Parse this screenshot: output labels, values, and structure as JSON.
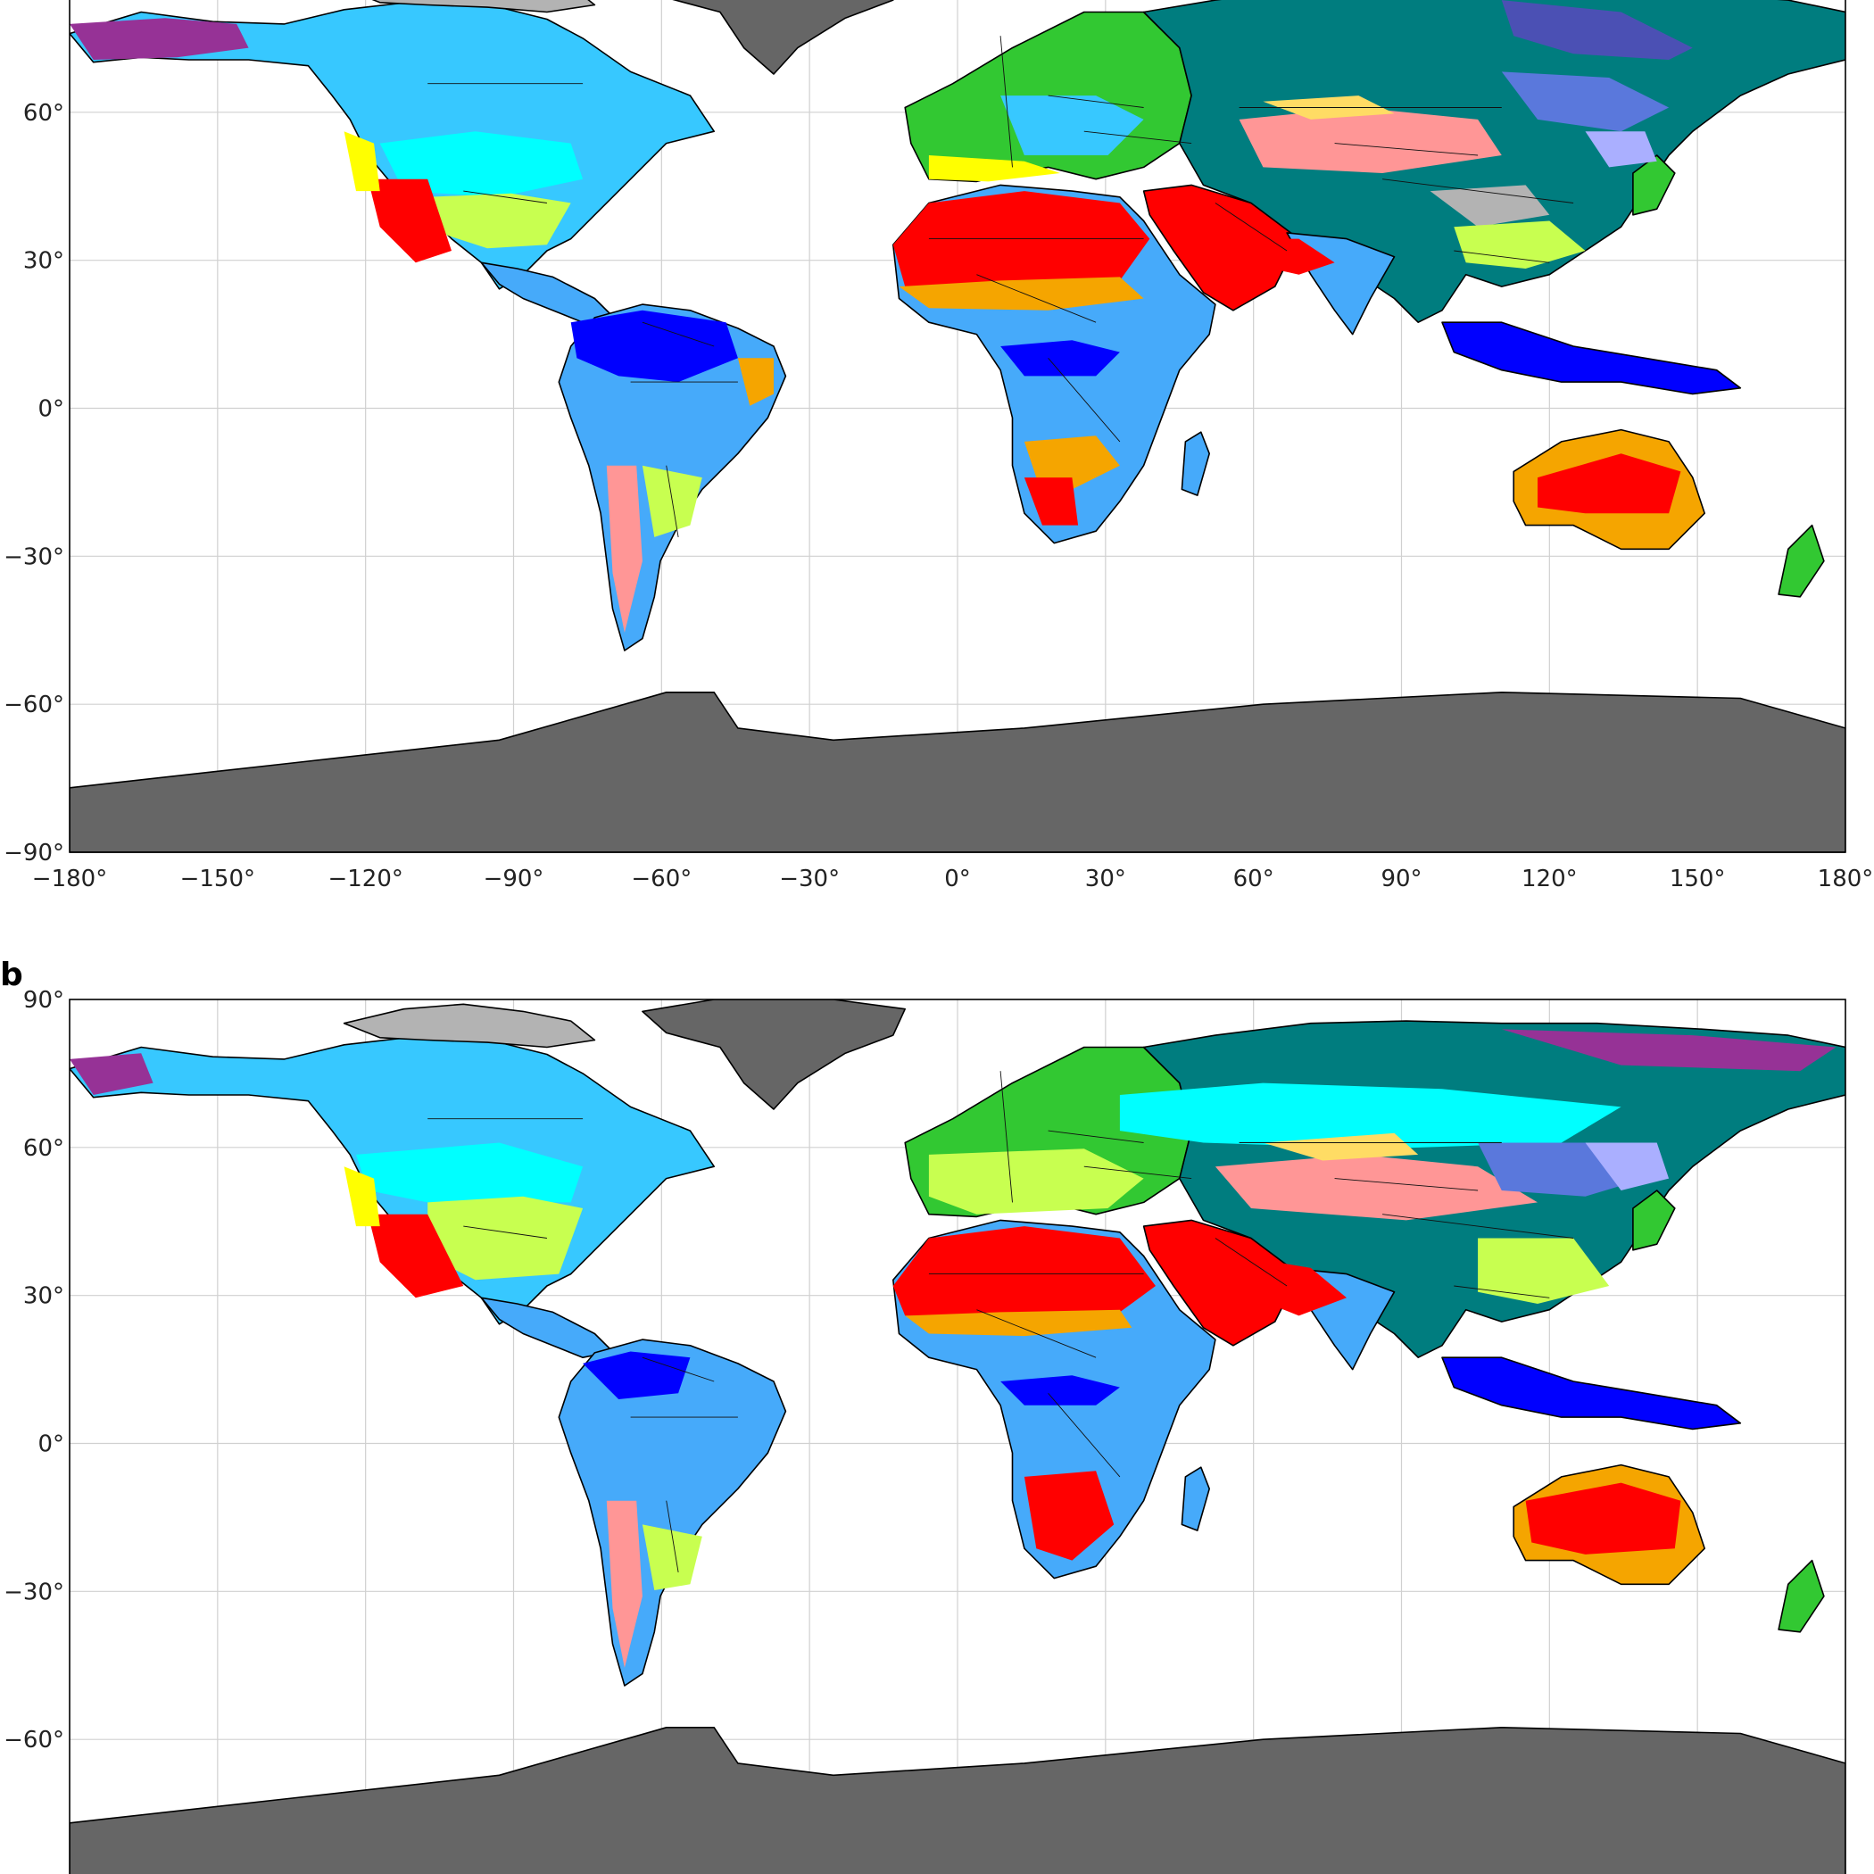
{
  "figure": {
    "panels": [
      {
        "id": "a",
        "label": "",
        "lon_ticks": [
          "−180°",
          "−150°",
          "−120°",
          "−90°",
          "−60°",
          "−30°",
          "0°",
          "30°",
          "60°",
          "90°",
          "120°",
          "150°",
          "180°"
        ],
        "lat_ticks": [
          "60°",
          "30°",
          "0°",
          "−30°",
          "−60°",
          "−90°"
        ]
      },
      {
        "id": "b",
        "label": "b",
        "lon_ticks": [],
        "lat_ticks": [
          "90°",
          "60°",
          "30°",
          "0°",
          "−30°",
          "−60°"
        ]
      }
    ]
  },
  "map_data": {
    "projection": "equirectangular",
    "lon_range": [
      -180,
      180
    ],
    "lat_range": [
      -90,
      90
    ],
    "grid": true,
    "gridline_interval_deg": 30,
    "land_outline": "coastlines and national borders",
    "class_colors": {
      "ocean": "#ffffff",
      "ice": "#666666",
      "tundra": "#b3b3b3",
      "tropical_rainforest": "#0000ff",
      "tropical_monsoon": "#0078ff",
      "tropical_savanna": "#46aafa",
      "hot_desert": "#ff0000",
      "cold_desert": "#ff9696",
      "hot_steppe": "#f5a500",
      "cold_steppe": "#ffdc64",
      "mediterranean": "#ffff00",
      "humid_subtropical": "#c8ff50",
      "oceanic": "#32c832",
      "humid_continental_hot": "#00ffff",
      "humid_continental_warm": "#37c8ff",
      "subarctic": "#007d7f",
      "dry_winter_continental": "#aaafff",
      "dry_winter_subarctic": "#5a78dc",
      "extreme_subarctic": "#4b50b4",
      "dry_summer_continental": "#ff00ff",
      "dry_summer_subarctic": "#963296"
    }
  }
}
